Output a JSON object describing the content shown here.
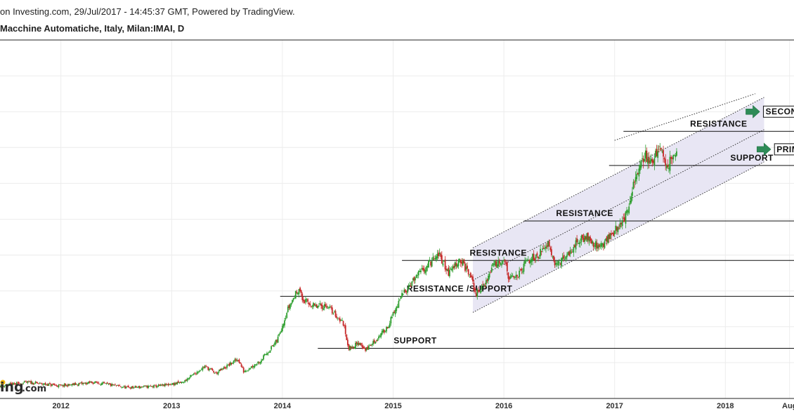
{
  "header": {
    "line1": "on Investing.com, 29/Jul/2017 - 14:45:37 GMT, Powered by TradingView.",
    "line2": "Macchine Automatiche, Italy, Milan:IMAI, D"
  },
  "watermark": {
    "part1": "ing",
    "part2": ".com"
  },
  "colors": {
    "up": "#2e9e2e",
    "down": "#c62828",
    "channel_fill": "#e8e6f4",
    "arrow": "#2e8b57",
    "grid": "#ececec"
  },
  "chart_data": {
    "type": "candlestick",
    "x_axis": {
      "range": [
        2011.45,
        2018.62
      ],
      "ticks": [
        {
          "x": 2012.0,
          "label": "2012"
        },
        {
          "x": 2013.0,
          "label": "2013"
        },
        {
          "x": 2014.0,
          "label": "2014"
        },
        {
          "x": 2015.0,
          "label": "2015"
        },
        {
          "x": 2016.0,
          "label": "2016"
        },
        {
          "x": 2017.0,
          "label": "2017"
        },
        {
          "x": 2018.0,
          "label": "2018"
        },
        {
          "x": 2018.58,
          "label": "Aug"
        }
      ]
    },
    "y_axis": {
      "range": [
        0.0,
        10.0
      ],
      "grid": true
    },
    "series": [
      {
        "points": [
          [
            2011.45,
            0.35
          ],
          [
            2011.7,
            0.45
          ],
          [
            2012.0,
            0.35
          ],
          [
            2012.3,
            0.45
          ],
          [
            2012.6,
            0.3
          ],
          [
            2012.9,
            0.35
          ],
          [
            2013.1,
            0.45
          ],
          [
            2013.3,
            0.9
          ],
          [
            2013.4,
            0.7
          ],
          [
            2013.6,
            1.1
          ],
          [
            2013.65,
            0.75
          ],
          [
            2013.8,
            1.05
          ],
          [
            2013.95,
            1.6
          ],
          [
            2014.05,
            2.5
          ],
          [
            2014.15,
            3.1
          ],
          [
            2014.18,
            2.75
          ],
          [
            2014.3,
            2.55
          ],
          [
            2014.4,
            2.6
          ],
          [
            2014.55,
            2.1
          ],
          [
            2014.6,
            1.4
          ],
          [
            2014.7,
            1.55
          ],
          [
            2014.75,
            1.35
          ],
          [
            2014.85,
            1.65
          ],
          [
            2014.95,
            2.0
          ],
          [
            2015.1,
            3.0
          ],
          [
            2015.3,
            3.7
          ],
          [
            2015.42,
            4.0
          ],
          [
            2015.5,
            3.5
          ],
          [
            2015.6,
            3.9
          ],
          [
            2015.7,
            3.4
          ],
          [
            2015.75,
            2.9
          ],
          [
            2015.85,
            3.3
          ],
          [
            2015.9,
            3.75
          ],
          [
            2016.0,
            3.9
          ],
          [
            2016.05,
            3.3
          ],
          [
            2016.15,
            3.5
          ],
          [
            2016.2,
            3.8
          ],
          [
            2016.35,
            4.1
          ],
          [
            2016.4,
            4.4
          ],
          [
            2016.47,
            3.7
          ],
          [
            2016.55,
            3.9
          ],
          [
            2016.65,
            4.3
          ],
          [
            2016.75,
            4.55
          ],
          [
            2016.85,
            4.2
          ],
          [
            2016.95,
            4.5
          ],
          [
            2017.05,
            4.85
          ],
          [
            2017.12,
            5.2
          ],
          [
            2017.2,
            6.3
          ],
          [
            2017.28,
            6.8
          ],
          [
            2017.35,
            6.6
          ],
          [
            2017.42,
            7.1
          ],
          [
            2017.47,
            6.4
          ],
          [
            2017.52,
            6.8
          ],
          [
            2017.56,
            6.9
          ]
        ]
      }
    ],
    "horizontal_lines": [
      {
        "y": 1.4,
        "x_from": 2014.32,
        "label": "SUPPORT",
        "label_x": 2015.2
      },
      {
        "y": 2.85,
        "x_from": 2013.98,
        "label": "RESISTANCE /SUPPORT",
        "label_x": 2015.6
      },
      {
        "y": 3.85,
        "x_from": 2015.08,
        "label": "RESISTANCE",
        "label_x": 2015.95
      },
      {
        "y": 4.95,
        "x_from": 2016.18,
        "label": "RESISTANCE",
        "label_x": 2016.73
      },
      {
        "y": 6.5,
        "x_from": 2016.95,
        "label": "SUPPORT",
        "label_x": 2018.24
      },
      {
        "y": 7.45,
        "x_from": 2017.08,
        "label": "RESISTANCE",
        "label_x": 2017.94
      }
    ],
    "channel": {
      "lower_start": [
        2015.72,
        2.4
      ],
      "lower_end": [
        2018.35,
        6.6
      ],
      "offset": 0.9,
      "upper_extension_end": [
        2018.27,
        8.5
      ]
    },
    "trend_labels": [
      {
        "label": "SECONDARY TREND",
        "x": 2018.35,
        "y": 8.0
      },
      {
        "label": "PRIMARY TREND",
        "x": 2018.45,
        "y": 6.95
      }
    ]
  }
}
